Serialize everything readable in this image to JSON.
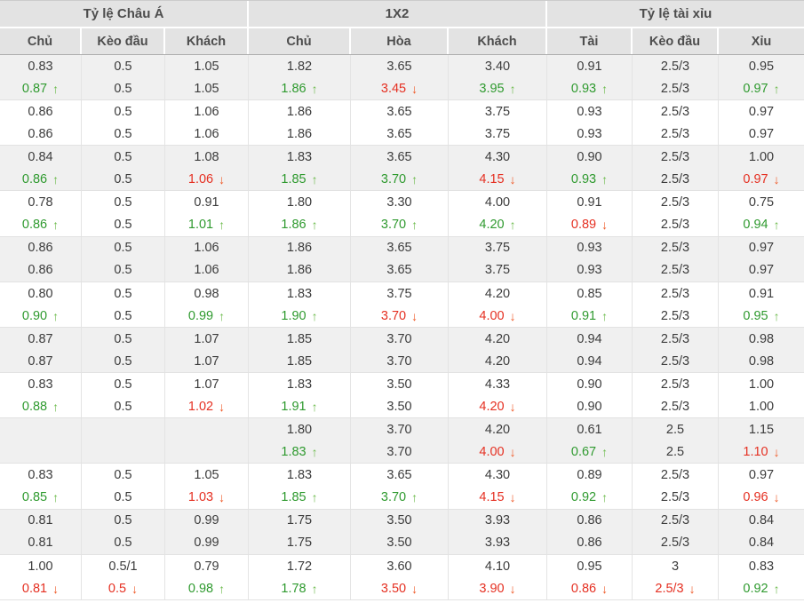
{
  "table": {
    "groups": [
      {
        "label": "Tỷ lệ Châu Á"
      },
      {
        "label": "1X2"
      },
      {
        "label": "Tỷ lệ tài xỉu"
      }
    ],
    "columns": [
      {
        "label": "Chủ"
      },
      {
        "label": "Kèo đầu"
      },
      {
        "label": "Khách"
      },
      {
        "label": "Chủ"
      },
      {
        "label": "Hòa"
      },
      {
        "label": "Khách"
      },
      {
        "label": "Tài"
      },
      {
        "label": "Kèo đầu"
      },
      {
        "label": "Xỉu"
      }
    ],
    "rows": [
      {
        "cells": [
          {
            "v": "0.83"
          },
          {
            "v": "0.5"
          },
          {
            "v": "1.05"
          },
          {
            "v": "1.82"
          },
          {
            "v": "3.65"
          },
          {
            "v": "3.40"
          },
          {
            "v": "0.91"
          },
          {
            "v": "2.5/3"
          },
          {
            "v": "0.95"
          }
        ]
      },
      {
        "cells": [
          {
            "v": "0.87",
            "t": "up"
          },
          {
            "v": "0.5"
          },
          {
            "v": "1.05"
          },
          {
            "v": "1.86",
            "t": "up"
          },
          {
            "v": "3.45",
            "t": "down"
          },
          {
            "v": "3.95",
            "t": "up"
          },
          {
            "v": "0.93",
            "t": "up"
          },
          {
            "v": "2.5/3"
          },
          {
            "v": "0.97",
            "t": "up"
          }
        ]
      },
      {
        "cells": [
          {
            "v": "0.86"
          },
          {
            "v": "0.5"
          },
          {
            "v": "1.06"
          },
          {
            "v": "1.86"
          },
          {
            "v": "3.65"
          },
          {
            "v": "3.75"
          },
          {
            "v": "0.93"
          },
          {
            "v": "2.5/3"
          },
          {
            "v": "0.97"
          }
        ]
      },
      {
        "cells": [
          {
            "v": "0.86"
          },
          {
            "v": "0.5"
          },
          {
            "v": "1.06"
          },
          {
            "v": "1.86"
          },
          {
            "v": "3.65"
          },
          {
            "v": "3.75"
          },
          {
            "v": "0.93"
          },
          {
            "v": "2.5/3"
          },
          {
            "v": "0.97"
          }
        ]
      },
      {
        "cells": [
          {
            "v": "0.84"
          },
          {
            "v": "0.5"
          },
          {
            "v": "1.08"
          },
          {
            "v": "1.83"
          },
          {
            "v": "3.65"
          },
          {
            "v": "4.30"
          },
          {
            "v": "0.90"
          },
          {
            "v": "2.5/3"
          },
          {
            "v": "1.00"
          }
        ]
      },
      {
        "cells": [
          {
            "v": "0.86",
            "t": "up"
          },
          {
            "v": "0.5"
          },
          {
            "v": "1.06",
            "t": "down"
          },
          {
            "v": "1.85",
            "t": "up"
          },
          {
            "v": "3.70",
            "t": "up"
          },
          {
            "v": "4.15",
            "t": "down"
          },
          {
            "v": "0.93",
            "t": "up"
          },
          {
            "v": "2.5/3"
          },
          {
            "v": "0.97",
            "t": "down"
          }
        ]
      },
      {
        "cells": [
          {
            "v": "0.78"
          },
          {
            "v": "0.5"
          },
          {
            "v": "0.91"
          },
          {
            "v": "1.80"
          },
          {
            "v": "3.30"
          },
          {
            "v": "4.00"
          },
          {
            "v": "0.91"
          },
          {
            "v": "2.5/3"
          },
          {
            "v": "0.75"
          }
        ]
      },
      {
        "cells": [
          {
            "v": "0.86",
            "t": "up"
          },
          {
            "v": "0.5"
          },
          {
            "v": "1.01",
            "t": "up"
          },
          {
            "v": "1.86",
            "t": "up"
          },
          {
            "v": "3.70",
            "t": "up"
          },
          {
            "v": "4.20",
            "t": "up"
          },
          {
            "v": "0.89",
            "t": "down"
          },
          {
            "v": "2.5/3"
          },
          {
            "v": "0.94",
            "t": "up"
          }
        ]
      },
      {
        "cells": [
          {
            "v": "0.86"
          },
          {
            "v": "0.5"
          },
          {
            "v": "1.06"
          },
          {
            "v": "1.86"
          },
          {
            "v": "3.65"
          },
          {
            "v": "3.75"
          },
          {
            "v": "0.93"
          },
          {
            "v": "2.5/3"
          },
          {
            "v": "0.97"
          }
        ]
      },
      {
        "cells": [
          {
            "v": "0.86"
          },
          {
            "v": "0.5"
          },
          {
            "v": "1.06"
          },
          {
            "v": "1.86"
          },
          {
            "v": "3.65"
          },
          {
            "v": "3.75"
          },
          {
            "v": "0.93"
          },
          {
            "v": "2.5/3"
          },
          {
            "v": "0.97"
          }
        ]
      },
      {
        "cells": [
          {
            "v": "0.80"
          },
          {
            "v": "0.5"
          },
          {
            "v": "0.98"
          },
          {
            "v": "1.83"
          },
          {
            "v": "3.75"
          },
          {
            "v": "4.20"
          },
          {
            "v": "0.85"
          },
          {
            "v": "2.5/3"
          },
          {
            "v": "0.91"
          }
        ]
      },
      {
        "cells": [
          {
            "v": "0.90",
            "t": "up"
          },
          {
            "v": "0.5"
          },
          {
            "v": "0.99",
            "t": "up"
          },
          {
            "v": "1.90",
            "t": "up"
          },
          {
            "v": "3.70",
            "t": "down"
          },
          {
            "v": "4.00",
            "t": "down"
          },
          {
            "v": "0.91",
            "t": "up"
          },
          {
            "v": "2.5/3"
          },
          {
            "v": "0.95",
            "t": "up"
          }
        ]
      },
      {
        "cells": [
          {
            "v": "0.87"
          },
          {
            "v": "0.5"
          },
          {
            "v": "1.07"
          },
          {
            "v": "1.85"
          },
          {
            "v": "3.70"
          },
          {
            "v": "4.20"
          },
          {
            "v": "0.94"
          },
          {
            "v": "2.5/3"
          },
          {
            "v": "0.98"
          }
        ]
      },
      {
        "cells": [
          {
            "v": "0.87"
          },
          {
            "v": "0.5"
          },
          {
            "v": "1.07"
          },
          {
            "v": "1.85"
          },
          {
            "v": "3.70"
          },
          {
            "v": "4.20"
          },
          {
            "v": "0.94"
          },
          {
            "v": "2.5/3"
          },
          {
            "v": "0.98"
          }
        ]
      },
      {
        "cells": [
          {
            "v": "0.83"
          },
          {
            "v": "0.5"
          },
          {
            "v": "1.07"
          },
          {
            "v": "1.83"
          },
          {
            "v": "3.50"
          },
          {
            "v": "4.33"
          },
          {
            "v": "0.90"
          },
          {
            "v": "2.5/3"
          },
          {
            "v": "1.00"
          }
        ]
      },
      {
        "cells": [
          {
            "v": "0.88",
            "t": "up"
          },
          {
            "v": "0.5"
          },
          {
            "v": "1.02",
            "t": "down"
          },
          {
            "v": "1.91",
            "t": "up"
          },
          {
            "v": "3.50"
          },
          {
            "v": "4.20",
            "t": "down"
          },
          {
            "v": "0.90"
          },
          {
            "v": "2.5/3"
          },
          {
            "v": "1.00"
          }
        ]
      },
      {
        "cells": [
          {
            "v": ""
          },
          {
            "v": ""
          },
          {
            "v": ""
          },
          {
            "v": "1.80"
          },
          {
            "v": "3.70"
          },
          {
            "v": "4.20"
          },
          {
            "v": "0.61"
          },
          {
            "v": "2.5"
          },
          {
            "v": "1.15"
          }
        ]
      },
      {
        "cells": [
          {
            "v": ""
          },
          {
            "v": ""
          },
          {
            "v": ""
          },
          {
            "v": "1.83",
            "t": "up"
          },
          {
            "v": "3.70"
          },
          {
            "v": "4.00",
            "t": "down"
          },
          {
            "v": "0.67",
            "t": "up"
          },
          {
            "v": "2.5"
          },
          {
            "v": "1.10",
            "t": "down"
          }
        ]
      },
      {
        "cells": [
          {
            "v": "0.83"
          },
          {
            "v": "0.5"
          },
          {
            "v": "1.05"
          },
          {
            "v": "1.83"
          },
          {
            "v": "3.65"
          },
          {
            "v": "4.30"
          },
          {
            "v": "0.89"
          },
          {
            "v": "2.5/3"
          },
          {
            "v": "0.97"
          }
        ]
      },
      {
        "cells": [
          {
            "v": "0.85",
            "t": "up"
          },
          {
            "v": "0.5"
          },
          {
            "v": "1.03",
            "t": "down"
          },
          {
            "v": "1.85",
            "t": "up"
          },
          {
            "v": "3.70",
            "t": "up"
          },
          {
            "v": "4.15",
            "t": "down"
          },
          {
            "v": "0.92",
            "t": "up"
          },
          {
            "v": "2.5/3"
          },
          {
            "v": "0.96",
            "t": "down"
          }
        ]
      },
      {
        "cells": [
          {
            "v": "0.81"
          },
          {
            "v": "0.5"
          },
          {
            "v": "0.99"
          },
          {
            "v": "1.75"
          },
          {
            "v": "3.50"
          },
          {
            "v": "3.93"
          },
          {
            "v": "0.86"
          },
          {
            "v": "2.5/3"
          },
          {
            "v": "0.84"
          }
        ]
      },
      {
        "cells": [
          {
            "v": "0.81"
          },
          {
            "v": "0.5"
          },
          {
            "v": "0.99"
          },
          {
            "v": "1.75"
          },
          {
            "v": "3.50"
          },
          {
            "v": "3.93"
          },
          {
            "v": "0.86"
          },
          {
            "v": "2.5/3"
          },
          {
            "v": "0.84"
          }
        ]
      },
      {
        "cells": [
          {
            "v": "1.00"
          },
          {
            "v": "0.5/1"
          },
          {
            "v": "0.79"
          },
          {
            "v": "1.72"
          },
          {
            "v": "3.60"
          },
          {
            "v": "4.10"
          },
          {
            "v": "0.95"
          },
          {
            "v": "3"
          },
          {
            "v": "0.83"
          }
        ]
      },
      {
        "cells": [
          {
            "v": "0.81",
            "t": "down"
          },
          {
            "v": "0.5",
            "t": "down"
          },
          {
            "v": "0.98",
            "t": "up"
          },
          {
            "v": "1.78",
            "t": "up"
          },
          {
            "v": "3.50",
            "t": "down"
          },
          {
            "v": "3.90",
            "t": "down"
          },
          {
            "v": "0.86",
            "t": "down"
          },
          {
            "v": "2.5/3",
            "t": "down"
          },
          {
            "v": "0.92",
            "t": "up"
          }
        ]
      }
    ]
  },
  "icons": {
    "up_arrow": "↑",
    "down_arrow": "↓"
  },
  "colors": {
    "trend_up_text": "#2f9a2f",
    "trend_down_text": "#e53022",
    "trend_up_arrow": "#6cbb4c",
    "trend_down_arrow": "#ef5a28",
    "header_bg": "#e3e3e3",
    "shaded_row_bg": "#f0f0f0"
  }
}
